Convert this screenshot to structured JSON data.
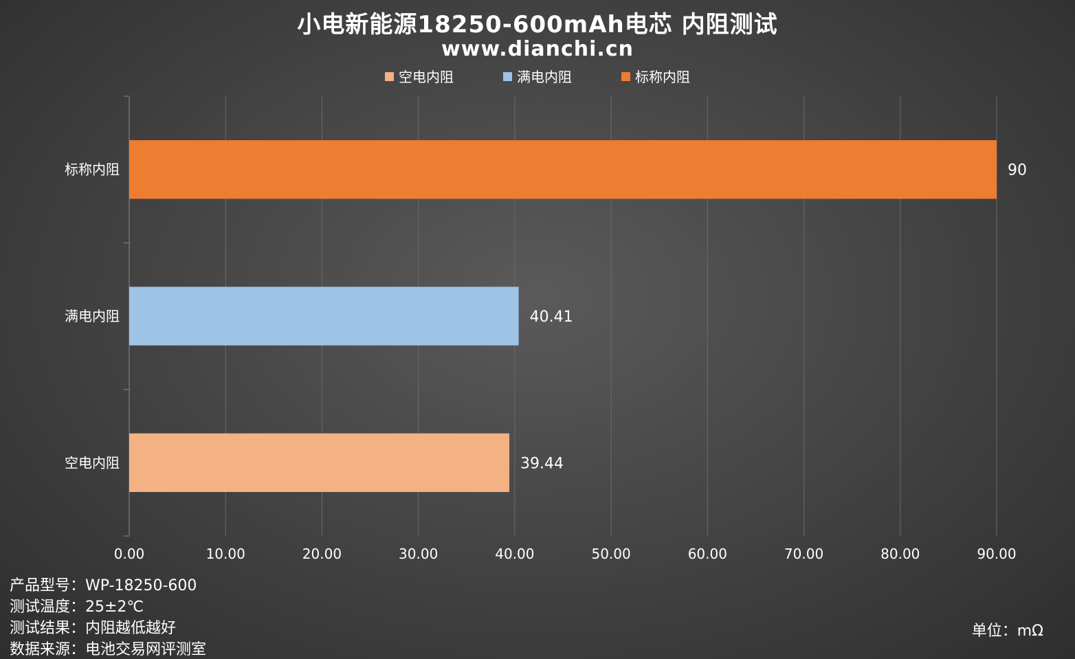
{
  "chart_data": {
    "type": "bar",
    "orientation": "horizontal",
    "title": "小电新能源18250-600mAh电芯 内阻测试",
    "subtitle": "www.dianchi.cn",
    "categories": [
      "标称内阻",
      "满电内阻",
      "空电内阻"
    ],
    "series": [
      {
        "name": "标称内阻",
        "category": "标称内阻",
        "value": 90,
        "label": "90",
        "color": "#ED7D31"
      },
      {
        "name": "满电内阻",
        "category": "满电内阻",
        "value": 40.41,
        "label": "40.41",
        "color": "#9DC3E6"
      },
      {
        "name": "空电内阻",
        "category": "空电内阻",
        "value": 39.44,
        "label": "39.44",
        "color": "#F4B183"
      }
    ],
    "legend": {
      "placement": "top-center",
      "entries": [
        {
          "name": "空电内阻",
          "color": "#F4B183"
        },
        {
          "name": "满电内阻",
          "color": "#9DC3E6"
        },
        {
          "name": "标称内阻",
          "color": "#ED7D31"
        }
      ]
    },
    "xlim": [
      0,
      90
    ],
    "xticks": [
      "0.00",
      "10.00",
      "20.00",
      "30.00",
      "40.00",
      "50.00",
      "60.00",
      "70.00",
      "80.00",
      "90.00"
    ],
    "grid": true,
    "unit": "单位：mΩ"
  },
  "footer": {
    "model": "产品型号：WP-18250-600",
    "temperature": "测试温度：25±2℃",
    "result": "测试结果：内阻越低越好",
    "source": "数据来源：电池交易网评测室"
  },
  "colors": {
    "gridline": "#6a6a6a",
    "axis": "#8a8a8a"
  }
}
